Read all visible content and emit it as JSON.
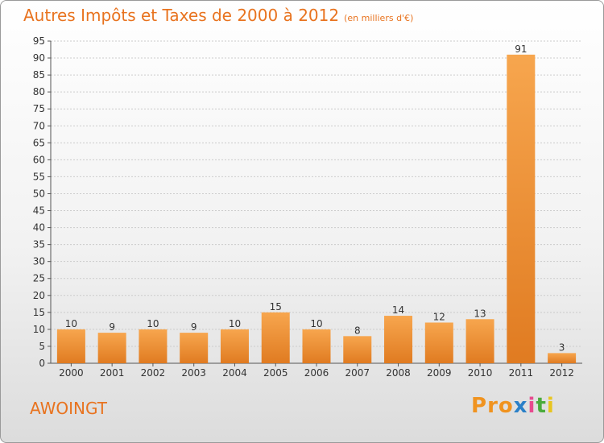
{
  "header": {
    "title": "Autres Impôts et Taxes de 2000 à 2012",
    "subtitle": "(en milliers d'€)"
  },
  "footer": {
    "town": "AWOINGT",
    "logo_letters": [
      "P",
      "r",
      "o",
      "x",
      "i",
      "t",
      "i"
    ],
    "logo_colors": [
      "#f0931f",
      "#f0931f",
      "#f0931f",
      "#2a80c8",
      "#e84a8f",
      "#4aab3c",
      "#e8c51f"
    ]
  },
  "colors": {
    "bar_light": "#f7a64e",
    "bar_dark": "#e07b21",
    "text": "#333333",
    "title": "#e8731f",
    "grid": "#cccccc"
  },
  "chart_data": {
    "type": "bar",
    "categories": [
      "2000",
      "2001",
      "2002",
      "2003",
      "2004",
      "2005",
      "2006",
      "2007",
      "2008",
      "2009",
      "2010",
      "2011",
      "2012"
    ],
    "values": [
      10,
      9,
      10,
      9,
      10,
      15,
      10,
      8,
      14,
      12,
      13,
      91,
      3
    ],
    "yticks": [
      0,
      5,
      10,
      15,
      20,
      25,
      30,
      35,
      40,
      45,
      50,
      55,
      60,
      65,
      70,
      75,
      80,
      85,
      90,
      95
    ],
    "ylim": [
      0,
      95
    ],
    "grid": true
  }
}
